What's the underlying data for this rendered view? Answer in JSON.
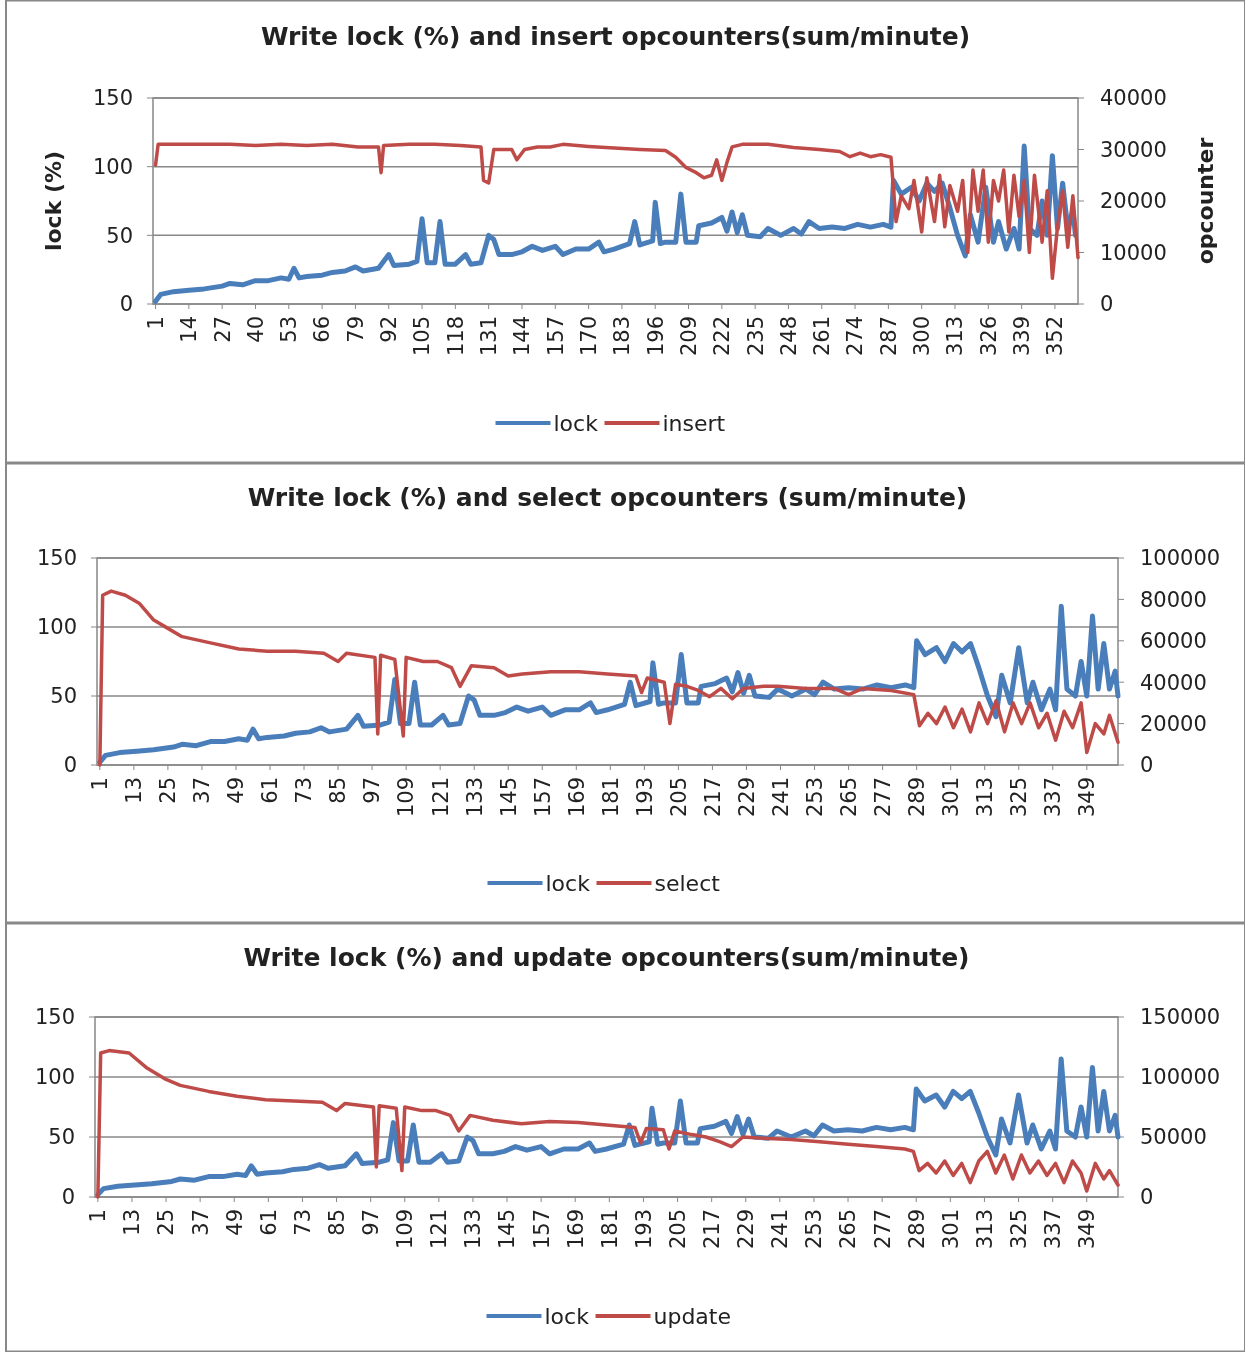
{
  "chart_data": [
    {
      "type": "line",
      "title": "Write lock (%) and insert opcounters(sum/minute)",
      "ylabel": "lock (%)",
      "y2label": "opcounter",
      "xlim": [
        0,
        361
      ],
      "xticks": [
        1,
        14,
        27,
        40,
        53,
        66,
        79,
        92,
        105,
        118,
        131,
        144,
        157,
        170,
        183,
        196,
        209,
        222,
        235,
        248,
        261,
        274,
        287,
        300,
        313,
        326,
        339,
        352
      ],
      "ylim": [
        0,
        150
      ],
      "yticks": [
        0,
        50,
        100,
        150
      ],
      "y2lim": [
        0,
        40000
      ],
      "y2ticks": [
        0,
        10000,
        20000,
        30000,
        40000
      ],
      "grid": "y",
      "legend": "bottom",
      "marker": "none",
      "line_style": "solid",
      "series": [
        {
          "name": "lock",
          "color": "#4a7ebb",
          "x": [
            1,
            3,
            8,
            14,
            20,
            27,
            30,
            35,
            40,
            45,
            50,
            53,
            55,
            57,
            60,
            66,
            70,
            75,
            79,
            82,
            88,
            92,
            94,
            100,
            103,
            105,
            107,
            110,
            112,
            114,
            118,
            122,
            124,
            128,
            131,
            133,
            135,
            140,
            144,
            148,
            152,
            157,
            160,
            165,
            170,
            174,
            176,
            180,
            186,
            188,
            190,
            195,
            196,
            198,
            200,
            204,
            206,
            208,
            212,
            213,
            218,
            222,
            224,
            226,
            228,
            230,
            232,
            237,
            240,
            245,
            250,
            253,
            256,
            260,
            265,
            270,
            275,
            280,
            285,
            288,
            289,
            292,
            296,
            299,
            302,
            305,
            308,
            311,
            314,
            317,
            319,
            322,
            325,
            328,
            330,
            333,
            336,
            338,
            340,
            342,
            345,
            347,
            349,
            351,
            353,
            355,
            357,
            359,
            360
          ],
          "values": [
            2,
            7,
            9,
            10,
            11,
            13,
            15,
            14,
            17,
            17,
            19,
            18,
            26,
            19,
            20,
            21,
            23,
            24,
            27,
            24,
            26,
            36,
            28,
            29,
            31,
            62,
            30,
            30,
            60,
            29,
            29,
            36,
            29,
            30,
            50,
            47,
            36,
            36,
            38,
            42,
            39,
            42,
            36,
            40,
            40,
            45,
            38,
            40,
            44,
            60,
            43,
            46,
            74,
            44,
            45,
            45,
            80,
            45,
            45,
            57,
            59,
            63,
            53,
            67,
            52,
            65,
            50,
            49,
            55,
            50,
            55,
            51,
            60,
            55,
            56,
            55,
            58,
            56,
            58,
            56,
            90,
            80,
            85,
            75,
            88,
            82,
            88,
            70,
            50,
            35,
            65,
            45,
            85,
            45,
            60,
            40,
            55,
            40,
            115,
            55,
            50,
            75,
            50,
            108,
            55,
            88,
            55,
            68,
            50
          ]
        },
        {
          "name": "insert",
          "color": "#be4b48",
          "axis": "y2",
          "x": [
            1,
            2,
            10,
            20,
            30,
            40,
            50,
            60,
            70,
            80,
            88,
            89,
            90,
            100,
            110,
            120,
            128,
            129,
            131,
            133,
            140,
            142,
            145,
            150,
            155,
            160,
            170,
            180,
            190,
            200,
            204,
            208,
            212,
            215,
            218,
            220,
            222,
            224,
            226,
            230,
            240,
            250,
            260,
            268,
            272,
            276,
            280,
            284,
            288,
            290,
            292,
            295,
            297,
            300,
            302,
            305,
            307,
            309,
            311,
            314,
            316,
            318,
            320,
            322,
            324,
            326,
            328,
            330,
            332,
            334,
            336,
            338,
            340,
            342,
            344,
            347,
            349,
            351,
            353,
            355,
            357,
            359,
            361
          ],
          "values": [
            27000,
            31000,
            31000,
            31000,
            31000,
            30800,
            31000,
            30800,
            31000,
            30500,
            30500,
            25500,
            30800,
            31000,
            31000,
            30800,
            30500,
            24000,
            23500,
            30000,
            30000,
            28000,
            30000,
            30500,
            30500,
            31000,
            30600,
            30300,
            30000,
            29800,
            28500,
            26500,
            25500,
            24500,
            25000,
            28000,
            24000,
            27500,
            30500,
            31000,
            31000,
            30400,
            30000,
            29600,
            28600,
            29300,
            28600,
            29000,
            28500,
            16000,
            21000,
            18500,
            24000,
            14000,
            24500,
            16000,
            25000,
            15000,
            23000,
            18000,
            24000,
            10000,
            26000,
            18000,
            26000,
            12000,
            24000,
            20000,
            26000,
            14000,
            25000,
            17000,
            24000,
            10000,
            25000,
            12000,
            22000,
            5000,
            15000,
            22000,
            11000,
            21000,
            9000
          ]
        }
      ]
    },
    {
      "type": "line",
      "title": "Write lock (%) and select opcounters (sum/minute)",
      "xlim": [
        0,
        360
      ],
      "xticks": [
        1,
        13,
        25,
        37,
        49,
        61,
        73,
        85,
        97,
        109,
        121,
        133,
        145,
        157,
        169,
        181,
        193,
        205,
        217,
        229,
        241,
        253,
        265,
        277,
        289,
        301,
        313,
        325,
        337,
        349
      ],
      "ylim": [
        0,
        150
      ],
      "yticks": [
        0,
        50,
        100,
        150
      ],
      "y2lim": [
        0,
        100000
      ],
      "y2ticks": [
        0,
        20000,
        40000,
        60000,
        80000,
        100000
      ],
      "grid": "y",
      "legend": "bottom",
      "marker": "none",
      "line_style": "solid",
      "series": [
        {
          "name": "lock",
          "color": "#4a7ebb",
          "x": [
            1,
            3,
            8,
            14,
            20,
            27,
            30,
            35,
            40,
            45,
            50,
            53,
            55,
            57,
            60,
            66,
            70,
            75,
            79,
            82,
            88,
            92,
            94,
            100,
            103,
            105,
            107,
            110,
            112,
            114,
            118,
            122,
            124,
            128,
            131,
            133,
            135,
            140,
            144,
            148,
            152,
            157,
            160,
            165,
            170,
            174,
            176,
            180,
            186,
            188,
            190,
            195,
            196,
            198,
            200,
            204,
            206,
            208,
            212,
            213,
            218,
            222,
            224,
            226,
            228,
            230,
            232,
            237,
            240,
            245,
            250,
            253,
            256,
            260,
            265,
            270,
            275,
            280,
            285,
            288,
            289,
            292,
            296,
            299,
            302,
            305,
            308,
            311,
            314,
            317,
            319,
            322,
            325,
            328,
            330,
            333,
            336,
            338,
            340,
            342,
            345,
            347,
            349,
            351,
            353,
            355,
            357,
            359,
            360
          ],
          "values": [
            2,
            7,
            9,
            10,
            11,
            13,
            15,
            14,
            17,
            17,
            19,
            18,
            26,
            19,
            20,
            21,
            23,
            24,
            27,
            24,
            26,
            36,
            28,
            29,
            31,
            62,
            30,
            30,
            60,
            29,
            29,
            36,
            29,
            30,
            50,
            47,
            36,
            36,
            38,
            42,
            39,
            42,
            36,
            40,
            40,
            45,
            38,
            40,
            44,
            60,
            43,
            46,
            74,
            44,
            45,
            45,
            80,
            45,
            45,
            57,
            59,
            63,
            53,
            67,
            52,
            65,
            50,
            49,
            55,
            50,
            55,
            51,
            60,
            55,
            56,
            55,
            58,
            56,
            58,
            56,
            90,
            80,
            85,
            75,
            88,
            82,
            88,
            70,
            50,
            35,
            65,
            45,
            85,
            45,
            60,
            40,
            55,
            40,
            115,
            55,
            50,
            75,
            50,
            108,
            55,
            88,
            55,
            68,
            50
          ]
        },
        {
          "name": "select",
          "color": "#be4b48",
          "axis": "y2",
          "x": [
            1,
            2,
            5,
            10,
            15,
            20,
            25,
            30,
            40,
            50,
            60,
            70,
            80,
            85,
            88,
            98,
            99,
            100,
            105,
            108,
            109,
            115,
            120,
            125,
            128,
            132,
            140,
            145,
            150,
            160,
            170,
            180,
            190,
            192,
            194,
            200,
            202,
            204,
            208,
            212,
            216,
            220,
            224,
            228,
            235,
            240,
            250,
            260,
            265,
            270,
            280,
            288,
            290,
            293,
            296,
            299,
            302,
            305,
            308,
            311,
            314,
            317,
            320,
            323,
            326,
            329,
            332,
            335,
            338,
            341,
            344,
            347,
            349,
            352,
            355,
            357,
            360
          ],
          "values": [
            0,
            82000,
            84000,
            82000,
            78000,
            70000,
            66000,
            62000,
            59000,
            56000,
            55000,
            55000,
            54000,
            50000,
            54000,
            52000,
            15000,
            53000,
            51000,
            14000,
            52000,
            50000,
            50000,
            47000,
            38000,
            48000,
            47000,
            43000,
            44000,
            45000,
            45000,
            44000,
            43000,
            35000,
            42000,
            40000,
            20000,
            39000,
            38000,
            36000,
            33000,
            37000,
            32000,
            37000,
            38000,
            38000,
            37000,
            37000,
            34000,
            37000,
            36000,
            34000,
            19000,
            25000,
            20000,
            28000,
            18000,
            27000,
            16000,
            30000,
            20000,
            31000,
            16000,
            30000,
            20000,
            30000,
            18000,
            25000,
            12000,
            26000,
            18000,
            30000,
            6000,
            20000,
            15000,
            24000,
            11000
          ]
        }
      ]
    },
    {
      "type": "line",
      "title": "Write lock (%) and update opcounters(sum/minute)",
      "xlim": [
        0,
        360
      ],
      "xticks": [
        1,
        13,
        25,
        37,
        49,
        61,
        73,
        85,
        97,
        109,
        121,
        133,
        145,
        157,
        169,
        181,
        193,
        205,
        217,
        229,
        241,
        253,
        265,
        277,
        289,
        301,
        313,
        325,
        337,
        349
      ],
      "ylim": [
        0,
        150
      ],
      "yticks": [
        0,
        50,
        100,
        150
      ],
      "y2lim": [
        0,
        150000
      ],
      "y2ticks": [
        0,
        50000,
        100000,
        150000
      ],
      "grid": "y",
      "legend": "bottom",
      "marker": "none",
      "line_style": "solid",
      "series": [
        {
          "name": "lock",
          "color": "#4a7ebb",
          "x": [
            1,
            3,
            8,
            14,
            20,
            27,
            30,
            35,
            40,
            45,
            50,
            53,
            55,
            57,
            60,
            66,
            70,
            75,
            79,
            82,
            88,
            92,
            94,
            100,
            103,
            105,
            107,
            110,
            112,
            114,
            118,
            122,
            124,
            128,
            131,
            133,
            135,
            140,
            144,
            148,
            152,
            157,
            160,
            165,
            170,
            174,
            176,
            180,
            186,
            188,
            190,
            195,
            196,
            198,
            200,
            204,
            206,
            208,
            212,
            213,
            218,
            222,
            224,
            226,
            228,
            230,
            232,
            237,
            240,
            245,
            250,
            253,
            256,
            260,
            265,
            270,
            275,
            280,
            285,
            288,
            289,
            292,
            296,
            299,
            302,
            305,
            308,
            311,
            314,
            317,
            319,
            322,
            325,
            328,
            330,
            333,
            336,
            338,
            340,
            342,
            345,
            347,
            349,
            351,
            353,
            355,
            357,
            359,
            360
          ],
          "values": [
            2,
            7,
            9,
            10,
            11,
            13,
            15,
            14,
            17,
            17,
            19,
            18,
            26,
            19,
            20,
            21,
            23,
            24,
            27,
            24,
            26,
            36,
            28,
            29,
            31,
            62,
            30,
            30,
            60,
            29,
            29,
            36,
            29,
            30,
            50,
            47,
            36,
            36,
            38,
            42,
            39,
            42,
            36,
            40,
            40,
            45,
            38,
            40,
            44,
            60,
            43,
            46,
            74,
            44,
            45,
            45,
            80,
            45,
            45,
            57,
            59,
            63,
            53,
            67,
            52,
            65,
            50,
            49,
            55,
            50,
            55,
            51,
            60,
            55,
            56,
            55,
            58,
            56,
            58,
            56,
            90,
            80,
            85,
            75,
            88,
            82,
            88,
            70,
            50,
            35,
            65,
            45,
            85,
            45,
            60,
            40,
            55,
            40,
            115,
            55,
            50,
            75,
            50,
            108,
            55,
            88,
            55,
            68,
            50
          ]
        },
        {
          "name": "update",
          "color": "#be4b48",
          "axis": "y2",
          "x": [
            1,
            2,
            5,
            12,
            18,
            25,
            30,
            40,
            50,
            60,
            70,
            80,
            85,
            88,
            98,
            99,
            100,
            106,
            108,
            109,
            115,
            120,
            125,
            128,
            132,
            140,
            150,
            160,
            170,
            180,
            190,
            192,
            194,
            200,
            202,
            204,
            210,
            215,
            220,
            224,
            228,
            235,
            245,
            255,
            265,
            275,
            285,
            288,
            290,
            293,
            296,
            299,
            302,
            305,
            308,
            311,
            314,
            317,
            320,
            323,
            326,
            329,
            332,
            335,
            338,
            341,
            344,
            347,
            349,
            352,
            355,
            357,
            360
          ],
          "values": [
            0,
            120000,
            122000,
            120000,
            108000,
            98000,
            93000,
            88000,
            84000,
            81000,
            80000,
            79000,
            72000,
            78000,
            75000,
            25000,
            76000,
            74000,
            22000,
            75000,
            72000,
            72000,
            68000,
            55000,
            68000,
            64000,
            61000,
            63000,
            62000,
            60000,
            58000,
            45000,
            57000,
            56000,
            40000,
            55000,
            52000,
            50000,
            46000,
            42000,
            50000,
            49000,
            48000,
            46000,
            44000,
            42000,
            40000,
            38000,
            22000,
            28000,
            20000,
            30000,
            18000,
            28000,
            12000,
            30000,
            38000,
            20000,
            35000,
            15000,
            35000,
            20000,
            30000,
            18000,
            28000,
            12000,
            30000,
            20000,
            5000,
            28000,
            15000,
            22000,
            10000
          ]
        }
      ]
    }
  ]
}
